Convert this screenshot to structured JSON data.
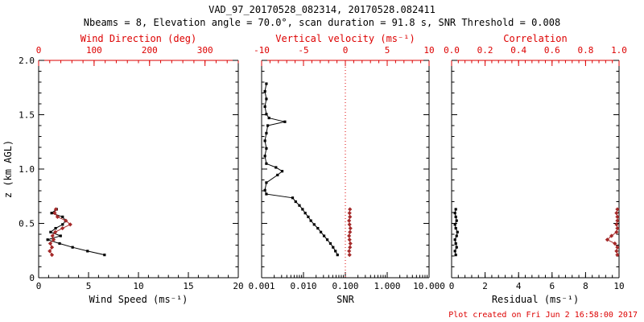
{
  "header": {
    "title": "VAD_97_20170528_082314, 20170528.082411",
    "subtitle": "Nbeams = 8, Elevation angle = 70.0°, scan duration = 91.8 s, SNR Threshold = 0.008"
  },
  "footer": {
    "created": "Plot created on Fri Jun  2 16:58:00 2017"
  },
  "colors": {
    "axis_red": "#dd0000",
    "series_red": "#a52a2a",
    "black": "#000000"
  },
  "chart_data": [
    {
      "type": "line",
      "name": "wind",
      "xlabel": "Wind Speed (ms⁻¹)",
      "xscale": "linear",
      "xlim": [
        0,
        20
      ],
      "xticks": [
        0,
        5,
        10,
        15,
        20
      ],
      "xtick_labels": [
        "0",
        "5",
        "10",
        "15",
        "20"
      ],
      "top_axis": {
        "label": "Wind Direction (deg)",
        "lim": [
          0,
          360
        ],
        "ticks": [
          0,
          100,
          200,
          300
        ],
        "tick_labels": [
          "0",
          "100",
          "200",
          "300"
        ]
      },
      "ylabel": "z (km AGL)",
      "ylim": [
        0,
        2.0
      ],
      "yticks": [
        0,
        0.5,
        1.0,
        1.5,
        2.0
      ],
      "ytick_labels": [
        "0",
        "0.5",
        "1.0",
        "1.5",
        "2.0"
      ],
      "show_ytick_labels": true,
      "series": [
        {
          "name": "wind-speed",
          "axis": "bottom",
          "color": "black",
          "marker": "square",
          "z": [
            0.21,
            0.245,
            0.28,
            0.315,
            0.35,
            0.385,
            0.42,
            0.455,
            0.49,
            0.525,
            0.56,
            0.595,
            0.63
          ],
          "values": [
            6.6,
            4.9,
            3.4,
            2.1,
            0.9,
            2.2,
            1.2,
            1.7,
            2.4,
            2.7,
            2.4,
            1.3,
            1.8
          ]
        },
        {
          "name": "wind-direction",
          "axis": "top",
          "color": "red",
          "marker": "diamond",
          "z": [
            0.21,
            0.245,
            0.28,
            0.315,
            0.35,
            0.385,
            0.42,
            0.455,
            0.49,
            0.525,
            0.56,
            0.595,
            0.63
          ],
          "values": [
            24,
            20,
            24,
            21,
            27,
            25,
            30,
            43,
            57,
            49,
            34,
            29,
            31
          ]
        }
      ]
    },
    {
      "type": "line",
      "name": "snr",
      "xlabel": "SNR",
      "xscale": "log",
      "xlim": [
        0.001,
        10.0
      ],
      "xticks": [
        0.001,
        0.01,
        0.1,
        1.0,
        10.0
      ],
      "xtick_labels": [
        "0.001",
        "0.010",
        "0.100",
        "1.000",
        "10.000"
      ],
      "top_axis": {
        "label": "Vertical velocity (ms⁻¹)",
        "lim": [
          -10,
          10
        ],
        "ticks": [
          -10,
          -5,
          0,
          5,
          10
        ],
        "tick_labels": [
          "-10",
          "-5",
          "0",
          "5",
          "10"
        ],
        "zero_line": 0
      },
      "ylabel": "",
      "ylim": [
        0,
        2.0
      ],
      "yticks": [
        0,
        0.5,
        1.0,
        1.5,
        2.0
      ],
      "ytick_labels": [
        "0",
        "0.5",
        "1.0",
        "1.5",
        "2.0"
      ],
      "show_ytick_labels": false,
      "series": [
        {
          "name": "snr-profile",
          "axis": "bottom",
          "color": "black",
          "marker": "square",
          "z": [
            0.21,
            0.245,
            0.28,
            0.315,
            0.35,
            0.385,
            0.42,
            0.455,
            0.49,
            0.525,
            0.56,
            0.595,
            0.63,
            0.665,
            0.7,
            0.735,
            0.77,
            0.805,
            0.875,
            0.945,
            0.98,
            1.015,
            1.05,
            1.12,
            1.19,
            1.26,
            1.33,
            1.4,
            1.435,
            1.47,
            1.505,
            1.575,
            1.645,
            1.715,
            1.785
          ],
          "values": [
            0.065,
            0.058,
            0.051,
            0.044,
            0.037,
            0.031,
            0.026,
            0.022,
            0.018,
            0.015,
            0.013,
            0.011,
            0.0095,
            0.008,
            0.0065,
            0.0055,
            0.0013,
            0.0012,
            0.0013,
            0.0024,
            0.0031,
            0.0022,
            0.0013,
            0.0012,
            0.0013,
            0.0012,
            0.0013,
            0.0014,
            0.0036,
            0.0015,
            0.0013,
            0.0012,
            0.0013,
            0.0012,
            0.0013
          ]
        },
        {
          "name": "vertical-velocity",
          "axis": "top",
          "color": "red",
          "marker": "diamond",
          "z": [
            0.21,
            0.245,
            0.28,
            0.315,
            0.35,
            0.385,
            0.42,
            0.455,
            0.49,
            0.525,
            0.56,
            0.595,
            0.63
          ],
          "values": [
            0.5,
            0.45,
            0.55,
            0.6,
            0.5,
            0.45,
            0.55,
            0.6,
            0.5,
            0.45,
            0.55,
            0.5,
            0.55
          ]
        }
      ]
    },
    {
      "type": "line",
      "name": "residual",
      "xlabel": "Residual (ms⁻¹)",
      "xscale": "linear",
      "xlim": [
        0,
        10
      ],
      "xticks": [
        0,
        2,
        4,
        6,
        8,
        10
      ],
      "xtick_labels": [
        "0",
        "2",
        "4",
        "6",
        "8",
        "10"
      ],
      "top_axis": {
        "label": "Correlation",
        "lim": [
          0,
          1.0
        ],
        "ticks": [
          0,
          0.2,
          0.4,
          0.6,
          0.8,
          1.0
        ],
        "tick_labels": [
          "0.0",
          "0.2",
          "0.4",
          "0.6",
          "0.8",
          "1.0"
        ]
      },
      "ylabel": "",
      "ylim": [
        0,
        2.0
      ],
      "yticks": [
        0,
        0.5,
        1.0,
        1.5,
        2.0
      ],
      "ytick_labels": [
        "0",
        "0.5",
        "1.0",
        "1.5",
        "2.0"
      ],
      "show_ytick_labels": false,
      "series": [
        {
          "name": "residual-profile",
          "axis": "bottom",
          "color": "black",
          "marker": "square",
          "z": [
            0.21,
            0.245,
            0.28,
            0.315,
            0.35,
            0.385,
            0.42,
            0.455,
            0.49,
            0.525,
            0.56,
            0.595,
            0.63
          ],
          "values": [
            0.25,
            0.2,
            0.3,
            0.25,
            0.2,
            0.3,
            0.35,
            0.25,
            0.2,
            0.3,
            0.25,
            0.2,
            0.25
          ]
        },
        {
          "name": "correlation-profile",
          "axis": "top",
          "color": "red",
          "marker": "diamond",
          "z": [
            0.21,
            0.245,
            0.28,
            0.315,
            0.35,
            0.385,
            0.42,
            0.455,
            0.49,
            0.525,
            0.56,
            0.595,
            0.63
          ],
          "values": [
            0.99,
            0.985,
            0.99,
            0.975,
            0.93,
            0.955,
            0.985,
            0.99,
            0.985,
            0.99,
            0.99,
            0.985,
            0.99
          ]
        }
      ]
    }
  ]
}
